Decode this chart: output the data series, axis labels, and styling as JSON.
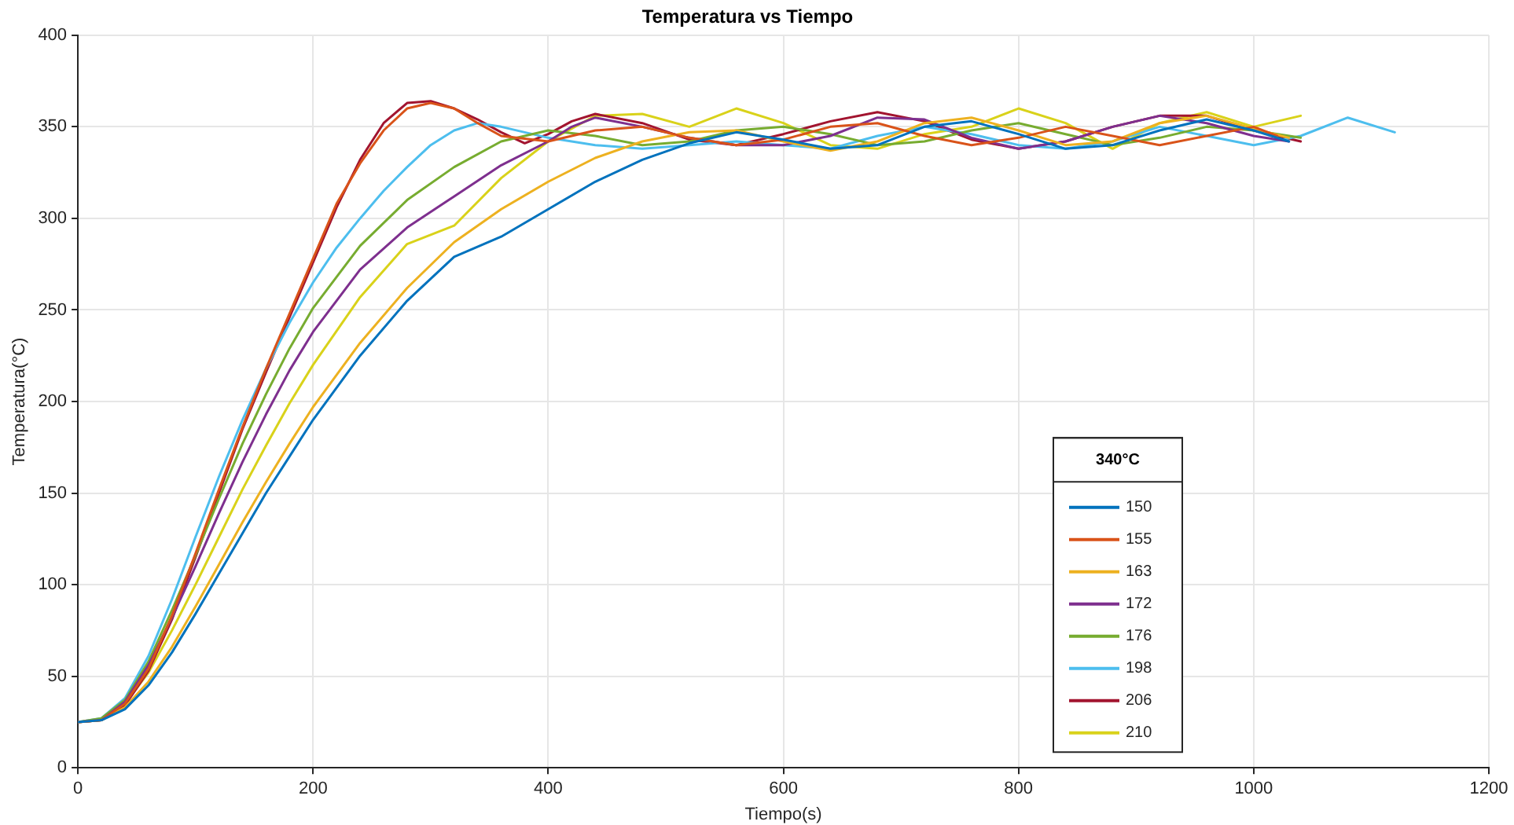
{
  "chart_data": {
    "type": "line",
    "title": "Temperatura vs Tiempo",
    "xlabel": "Tiempo(s)",
    "ylabel": "Temperatura(°C)",
    "legend_title": "340°C",
    "legend": "bottom right",
    "grid": true,
    "marker": "none",
    "line_style": "solid",
    "xlim": [
      0,
      1200
    ],
    "xticks": [
      0,
      200,
      400,
      600,
      800,
      1000,
      1200
    ],
    "ylim": [
      0,
      400
    ],
    "yticks": [
      0,
      50,
      100,
      150,
      200,
      250,
      300,
      350,
      400
    ],
    "series": [
      {
        "name": "150",
        "color": "#0072bd",
        "x": [
          0,
          20,
          40,
          60,
          80,
          100,
          120,
          140,
          160,
          180,
          200,
          240,
          280,
          320,
          360,
          400,
          440,
          480,
          520,
          560,
          600,
          640,
          680,
          720,
          760,
          800,
          840,
          880,
          920,
          960,
          1000,
          1030
        ],
        "values": [
          25,
          26,
          32,
          45,
          63,
          84,
          106,
          128,
          150,
          170,
          190,
          225,
          255,
          279,
          290,
          305,
          320,
          332,
          341,
          347,
          343,
          338,
          340,
          350,
          353,
          346,
          338,
          340,
          348,
          354,
          348,
          342
        ]
      },
      {
        "name": "155",
        "color": "#d95319",
        "x": [
          0,
          20,
          40,
          60,
          80,
          100,
          120,
          140,
          160,
          180,
          200,
          220,
          240,
          260,
          280,
          300,
          320,
          340,
          360,
          400,
          440,
          480,
          520,
          560,
          600,
          640,
          680,
          720,
          760,
          800,
          840,
          880,
          920,
          960,
          1000,
          1020
        ],
        "values": [
          25,
          26,
          35,
          54,
          83,
          117,
          152,
          186,
          218,
          248,
          278,
          308,
          330,
          348,
          360,
          363,
          360,
          352,
          345,
          342,
          348,
          350,
          344,
          340,
          343,
          350,
          352,
          345,
          340,
          344,
          350,
          345,
          340,
          345,
          350,
          345
        ]
      },
      {
        "name": "163",
        "color": "#edb120",
        "x": [
          0,
          20,
          40,
          60,
          80,
          100,
          120,
          140,
          160,
          180,
          200,
          240,
          280,
          320,
          360,
          400,
          440,
          480,
          520,
          560,
          600,
          640,
          680,
          720,
          760,
          800,
          840,
          880,
          920,
          960,
          1000,
          1030
        ],
        "values": [
          25,
          26,
          33,
          47,
          66,
          88,
          111,
          134,
          156,
          177,
          197,
          232,
          262,
          287,
          305,
          320,
          333,
          342,
          347,
          348,
          342,
          337,
          342,
          352,
          355,
          348,
          340,
          342,
          352,
          356,
          349,
          344
        ]
      },
      {
        "name": "172",
        "color": "#7e2f8e",
        "x": [
          0,
          20,
          40,
          60,
          80,
          100,
          120,
          140,
          160,
          180,
          200,
          240,
          280,
          320,
          360,
          400,
          420,
          440,
          480,
          520,
          560,
          600,
          640,
          680,
          720,
          760,
          800,
          840,
          880,
          920,
          960,
          1000,
          1030
        ],
        "values": [
          25,
          26,
          36,
          56,
          82,
          110,
          139,
          167,
          193,
          217,
          238,
          272,
          295,
          312,
          329,
          342,
          350,
          355,
          350,
          344,
          340,
          340,
          345,
          355,
          354,
          344,
          338,
          342,
          350,
          356,
          352,
          345,
          342
        ]
      },
      {
        "name": "176",
        "color": "#77ac30",
        "x": [
          0,
          20,
          40,
          60,
          80,
          100,
          120,
          140,
          160,
          180,
          200,
          240,
          280,
          320,
          360,
          400,
          440,
          480,
          520,
          560,
          600,
          640,
          680,
          720,
          760,
          800,
          840,
          880,
          920,
          960,
          1000,
          1040
        ],
        "values": [
          25,
          27,
          37,
          58,
          86,
          116,
          147,
          177,
          204,
          229,
          251,
          285,
          310,
          328,
          342,
          348,
          345,
          340,
          342,
          348,
          350,
          346,
          340,
          342,
          348,
          352,
          346,
          340,
          344,
          350,
          348,
          344
        ]
      },
      {
        "name": "198",
        "color": "#4dbeee",
        "x": [
          0,
          20,
          40,
          60,
          80,
          100,
          120,
          140,
          160,
          180,
          200,
          220,
          240,
          260,
          280,
          300,
          320,
          340,
          360,
          400,
          440,
          480,
          520,
          560,
          600,
          640,
          680,
          720,
          760,
          800,
          840,
          880,
          920,
          960,
          1000,
          1040,
          1080,
          1120
        ],
        "values": [
          25,
          27,
          38,
          61,
          92,
          126,
          159,
          190,
          218,
          243,
          265,
          284,
          300,
          315,
          328,
          340,
          348,
          352,
          350,
          344,
          340,
          338,
          340,
          342,
          340,
          338,
          345,
          350,
          346,
          340,
          338,
          342,
          350,
          345,
          340,
          345,
          355,
          347
        ]
      },
      {
        "name": "206",
        "color": "#a2142f",
        "x": [
          0,
          20,
          40,
          60,
          80,
          100,
          120,
          140,
          160,
          180,
          200,
          220,
          240,
          260,
          280,
          300,
          320,
          340,
          360,
          380,
          400,
          420,
          440,
          480,
          520,
          560,
          600,
          640,
          680,
          720,
          760,
          800,
          840,
          880,
          920,
          960,
          1000,
          1040
        ],
        "values": [
          25,
          26,
          34,
          53,
          81,
          115,
          150,
          185,
          216,
          246,
          276,
          306,
          332,
          352,
          363,
          364,
          360,
          354,
          347,
          341,
          346,
          353,
          357,
          352,
          343,
          340,
          346,
          353,
          358,
          353,
          343,
          338,
          342,
          350,
          356,
          356,
          348,
          342
        ]
      },
      {
        "name": "210",
        "color": "#d9d21a",
        "x": [
          0,
          20,
          40,
          60,
          80,
          100,
          120,
          140,
          160,
          180,
          200,
          240,
          280,
          320,
          360,
          400,
          440,
          480,
          520,
          560,
          600,
          640,
          680,
          720,
          760,
          800,
          840,
          880,
          920,
          960,
          1000,
          1040
        ],
        "values": [
          25,
          26,
          35,
          52,
          75,
          100,
          126,
          152,
          176,
          199,
          220,
          257,
          286,
          296,
          322,
          342,
          356,
          357,
          350,
          360,
          352,
          340,
          338,
          346,
          350,
          360,
          352,
          338,
          352,
          358,
          350,
          356
        ]
      }
    ]
  }
}
